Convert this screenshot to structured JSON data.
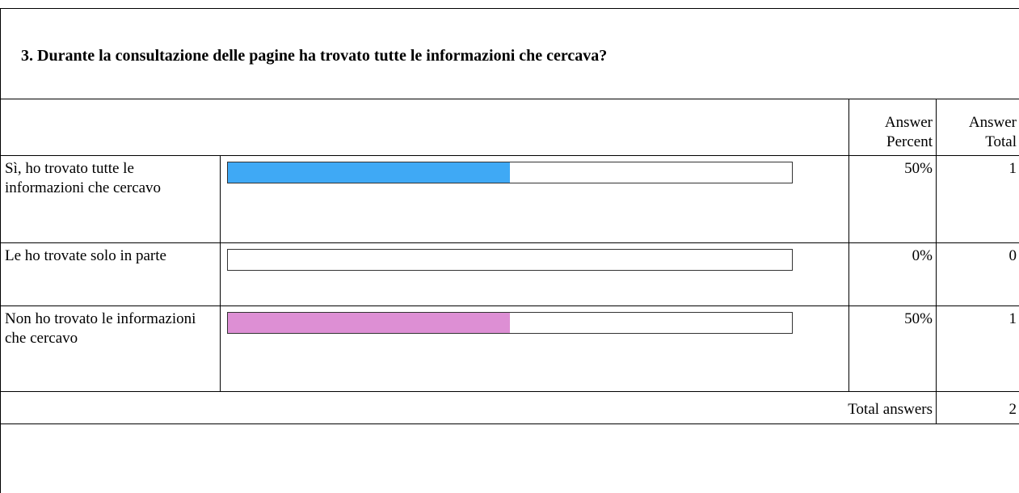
{
  "title": "3. Durante la consultazione delle pagine ha trovato tutte le informazioni che cercava?",
  "table": {
    "headers": [
      "Answer Percent",
      "Answer Total"
    ],
    "rows": [
      {
        "label": "Sì, ho trovato tutte le informazioni che cercavo",
        "percent": 50,
        "percent_label": "50%",
        "total": 1,
        "color": "#3fa9f5"
      },
      {
        "label": "Le ho trovate solo in parte",
        "percent": 0,
        "percent_label": "0%",
        "total": 0
      },
      {
        "label": "Non ho trovato le informazioni che cercavo",
        "percent": 50,
        "percent_label": "50%",
        "total": 1,
        "color": "#dd8fd4"
      }
    ],
    "footer": {
      "label": "Total answers",
      "total": 2
    }
  }
}
